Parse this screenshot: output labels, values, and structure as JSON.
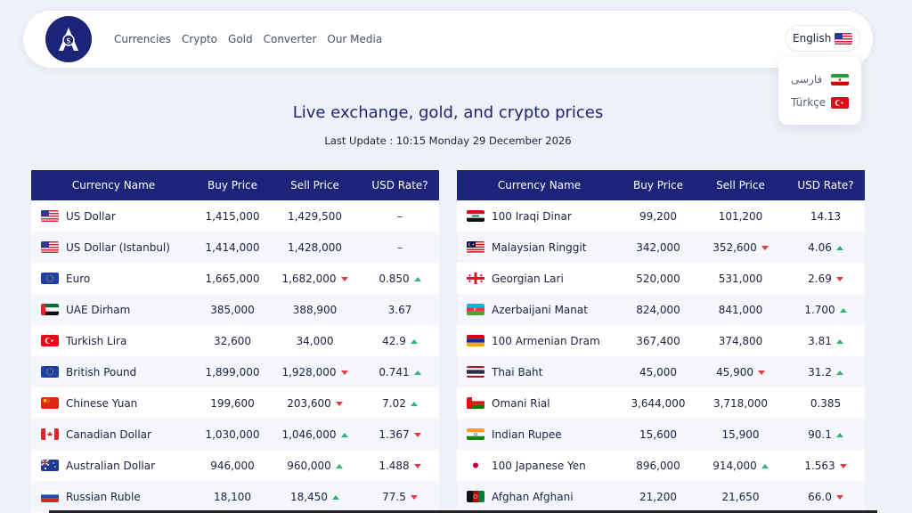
{
  "nav": {
    "items": [
      "Currencies",
      "Crypto",
      "Gold",
      "Converter",
      "Our Media"
    ]
  },
  "language": {
    "current": "English",
    "options": [
      "فارسی",
      "Türkçe"
    ]
  },
  "page": {
    "title": "Live exchange, gold, and crypto prices",
    "last_update": "Last Update : 10:15 Monday 29 December 2026"
  },
  "table_headers": {
    "name": "Currency Name",
    "buy": "Buy Price",
    "sell": "Sell Price",
    "rate": "USD Rate?"
  },
  "colors": {
    "brand": "#1b2478",
    "up": "#2bb673",
    "down": "#e23b3b"
  },
  "left_table": [
    {
      "flag": "us",
      "name": "US Dollar",
      "buy": "1,415,000",
      "sell": "1,429,500",
      "sell_trend": "",
      "rate": "–",
      "rate_trend": ""
    },
    {
      "flag": "us",
      "name": "US Dollar (Istanbul)",
      "buy": "1,414,000",
      "sell": "1,428,000",
      "sell_trend": "",
      "rate": "–",
      "rate_trend": ""
    },
    {
      "flag": "eu",
      "name": "Euro",
      "buy": "1,665,000",
      "sell": "1,682,000",
      "sell_trend": "down",
      "rate": "0.850",
      "rate_trend": "up"
    },
    {
      "flag": "ae",
      "name": "UAE Dirham",
      "buy": "385,000",
      "sell": "388,900",
      "sell_trend": "",
      "rate": "3.67",
      "rate_trend": ""
    },
    {
      "flag": "tr",
      "name": "Turkish Lira",
      "buy": "32,600",
      "sell": "34,000",
      "sell_trend": "",
      "rate": "42.9",
      "rate_trend": "up"
    },
    {
      "flag": "eu",
      "name": "British Pound",
      "buy": "1,899,000",
      "sell": "1,928,000",
      "sell_trend": "down",
      "rate": "0.741",
      "rate_trend": "up"
    },
    {
      "flag": "cn",
      "name": "Chinese Yuan",
      "buy": "199,600",
      "sell": "203,600",
      "sell_trend": "down",
      "rate": "7.02",
      "rate_trend": "up"
    },
    {
      "flag": "ca",
      "name": "Canadian Dollar",
      "buy": "1,030,000",
      "sell": "1,046,000",
      "sell_trend": "up",
      "rate": "1.367",
      "rate_trend": "down"
    },
    {
      "flag": "au",
      "name": "Australian Dollar",
      "buy": "946,000",
      "sell": "960,000",
      "sell_trend": "up",
      "rate": "1.488",
      "rate_trend": "down"
    },
    {
      "flag": "ru",
      "name": "Russian Ruble",
      "buy": "18,100",
      "sell": "18,450",
      "sell_trend": "up",
      "rate": "77.5",
      "rate_trend": "down"
    }
  ],
  "right_table": [
    {
      "flag": "iq",
      "name": "100 Iraqi Dinar",
      "buy": "99,200",
      "sell": "101,200",
      "sell_trend": "",
      "rate": "14.13",
      "rate_trend": ""
    },
    {
      "flag": "my",
      "name": "Malaysian Ringgit",
      "buy": "342,000",
      "sell": "352,600",
      "sell_trend": "down",
      "rate": "4.06",
      "rate_trend": "up"
    },
    {
      "flag": "ge",
      "name": "Georgian Lari",
      "buy": "520,000",
      "sell": "531,000",
      "sell_trend": "",
      "rate": "2.69",
      "rate_trend": "down"
    },
    {
      "flag": "az",
      "name": "Azerbaijani Manat",
      "buy": "824,000",
      "sell": "841,000",
      "sell_trend": "",
      "rate": "1.700",
      "rate_trend": "up"
    },
    {
      "flag": "am",
      "name": "100 Armenian Dram",
      "buy": "367,400",
      "sell": "374,800",
      "sell_trend": "",
      "rate": "3.81",
      "rate_trend": "up"
    },
    {
      "flag": "th",
      "name": "Thai Baht",
      "buy": "45,000",
      "sell": "45,900",
      "sell_trend": "down",
      "rate": "31.2",
      "rate_trend": "up"
    },
    {
      "flag": "om",
      "name": "Omani Rial",
      "buy": "3,644,000",
      "sell": "3,718,000",
      "sell_trend": "",
      "rate": "0.385",
      "rate_trend": ""
    },
    {
      "flag": "in",
      "name": "Indian Rupee",
      "buy": "15,600",
      "sell": "15,900",
      "sell_trend": "",
      "rate": "90.1",
      "rate_trend": "up"
    },
    {
      "flag": "jp",
      "name": "100 Japanese Yen",
      "buy": "896,000",
      "sell": "914,000",
      "sell_trend": "up",
      "rate": "1.563",
      "rate_trend": "down"
    },
    {
      "flag": "af",
      "name": "Afghan Afghani",
      "buy": "21,200",
      "sell": "21,650",
      "sell_trend": "",
      "rate": "66.0",
      "rate_trend": "down"
    }
  ]
}
